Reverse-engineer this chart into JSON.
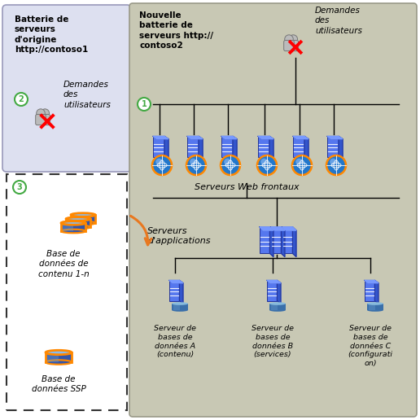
{
  "bg_color": "#ffffff",
  "main_box_color": "#c8c8b4",
  "left_box_color": "#dde0f0",
  "title_left": "Batterie de\nserveurs\nd'origine\nhttp://contoso1",
  "title_right_bold": "Nouvelle\nbatterie de\nserveurs http://\ncontoso2",
  "label_users_right": "Demandes\ndes\nutilisateurs",
  "label_web": "Serveurs Web frontaux",
  "label_app": "Serveurs\nd'applications",
  "label_users_left": "Demandes\ndes\nutilisateurs",
  "label_db1": "Serveur de\nbases de\ndonnées A\n(contenu)",
  "label_db2": "Serveur de\nbases de\ndonnées B\n(services)",
  "label_db3": "Serveur de\nbases de\ndonnées C\n(configurati\non)",
  "label_content_db": "Base de\ndonnées de\ncontenu 1-n",
  "label_ssp_db": "Base de\ndonnées SSP",
  "server_blue1": "#3355cc",
  "server_blue2": "#5577ee",
  "server_blue3": "#7799ff",
  "db_blue1": "#3366bb",
  "db_blue2": "#66aadd",
  "db_orange": "#ff8800",
  "globe_blue": "#1a6fbb",
  "person_gray": "#aaaaaa",
  "line_color": "#000000",
  "circle_green": "#44aa44",
  "arrow_orange": "#e87820"
}
